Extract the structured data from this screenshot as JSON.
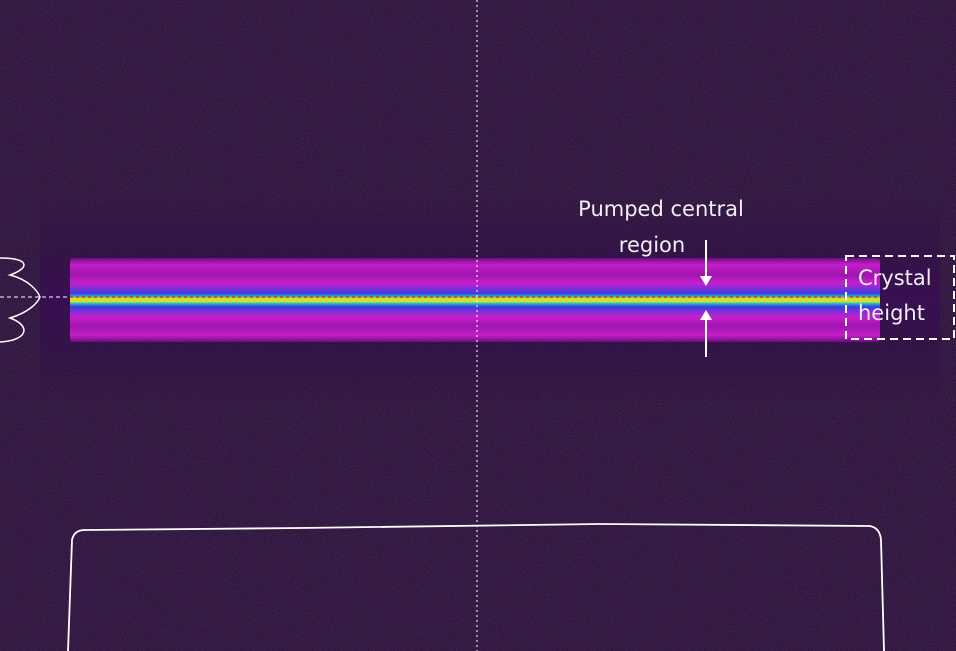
{
  "annotations": {
    "pumped_region": {
      "lines": [
        "Pumped central",
        "region"
      ]
    },
    "crystal_height": {
      "lines": [
        "Crystal",
        "height"
      ]
    }
  }
}
